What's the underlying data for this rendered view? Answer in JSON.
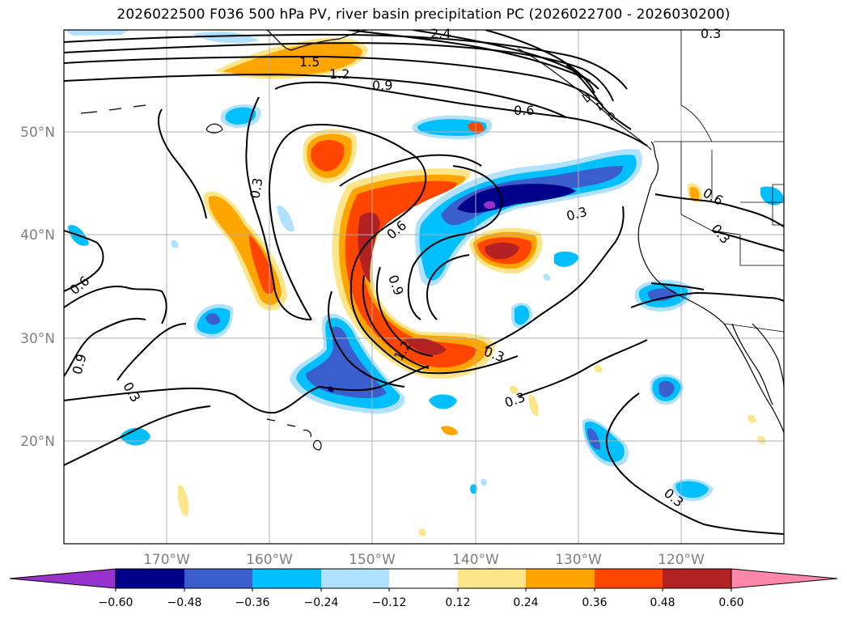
{
  "title": "2026022500 F036 500 hPa PV, river basin precipitation PC (2026022700 - 2026030200)",
  "map": {
    "lon_range": [
      -180,
      -110
    ],
    "lat_range": [
      10,
      60
    ],
    "lat_gridlines": [
      {
        "value": 50,
        "label": "50°N"
      },
      {
        "value": 40,
        "label": "40°N"
      },
      {
        "value": 30,
        "label": "30°N"
      },
      {
        "value": 20,
        "label": "20°N"
      }
    ],
    "lon_gridlines": [
      {
        "value": -170,
        "label": "170°W"
      },
      {
        "value": -160,
        "label": "160°W"
      },
      {
        "value": -150,
        "label": "150°W"
      },
      {
        "value": -140,
        "label": "140°W"
      },
      {
        "value": -130,
        "label": "130°W"
      },
      {
        "value": -120,
        "label": "120°W"
      }
    ],
    "contour_labels": [
      "2.4",
      "0.3",
      "1.5",
      "1.2",
      "0.9",
      "0.6",
      "0.3",
      "0.6",
      "0.9",
      "1.2",
      "0.3",
      "0.3",
      "0.6",
      "0.3",
      "0.9",
      "0.3",
      "0.6",
      "0.3",
      "0.3"
    ]
  },
  "colorbar": {
    "colors": [
      "#9932cc",
      "#00008b",
      "#3a5fcd",
      "#00bfff",
      "#b0e2ff",
      "#ffffff",
      "#fde68a",
      "#ffa500",
      "#ff4500",
      "#b22222",
      "#ff88aa"
    ],
    "ticks": [
      "−0.60",
      "−0.48",
      "−0.36",
      "−0.24",
      "−0.12",
      "0.12",
      "0.24",
      "0.36",
      "0.48",
      "0.60"
    ]
  }
}
